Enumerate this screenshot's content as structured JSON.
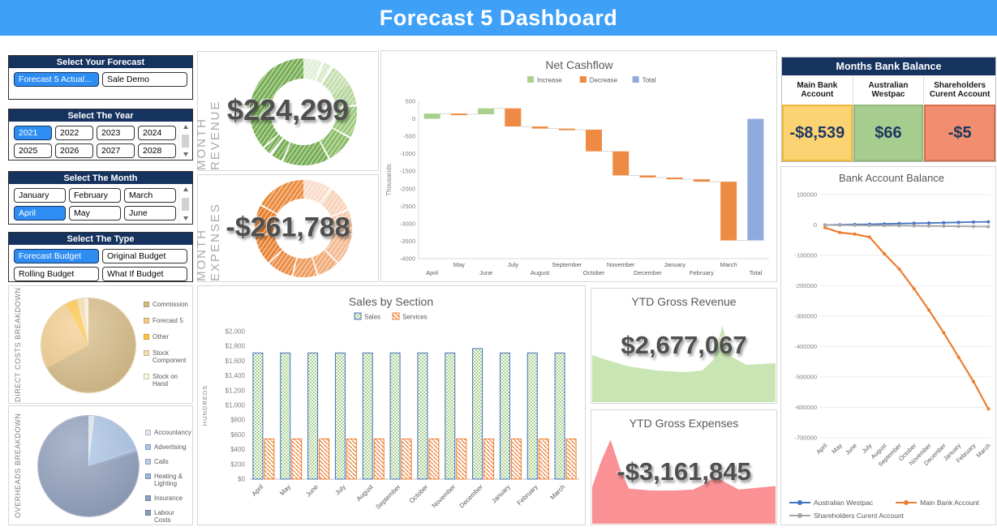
{
  "app": {
    "title": "Forecast 5 Dashboard"
  },
  "slicers": [
    {
      "id": "forecast",
      "title": "Select Your Forecast",
      "scrollbar": false,
      "options": [
        {
          "label": "Forecast 5 Actual...",
          "selected": true
        },
        {
          "label": "Sale Demo",
          "selected": false
        }
      ]
    },
    {
      "id": "year",
      "title": "Select The Year",
      "scrollbar": true,
      "options": [
        {
          "label": "2021",
          "selected": true
        },
        {
          "label": "2022",
          "selected": false
        },
        {
          "label": "2023",
          "selected": false
        },
        {
          "label": "2024",
          "selected": false
        },
        {
          "label": "2025",
          "selected": false
        },
        {
          "label": "2026",
          "selected": false
        },
        {
          "label": "2027",
          "selected": false
        },
        {
          "label": "2028",
          "selected": false
        }
      ]
    },
    {
      "id": "month",
      "title": "Select The Month",
      "scrollbar": true,
      "options": [
        {
          "label": "January",
          "selected": false
        },
        {
          "label": "February",
          "selected": false
        },
        {
          "label": "March",
          "selected": false
        },
        {
          "label": "April",
          "selected": true
        },
        {
          "label": "May",
          "selected": false
        },
        {
          "label": "June",
          "selected": false
        }
      ]
    },
    {
      "id": "type",
      "title": "Select The Type",
      "scrollbar": false,
      "options": [
        {
          "label": "Forecast Budget",
          "selected": true
        },
        {
          "label": "Original Budget",
          "selected": false
        },
        {
          "label": "Rolling Budget",
          "selected": false
        },
        {
          "label": "What If Budget",
          "selected": false
        }
      ]
    }
  ],
  "kpis": {
    "month_revenue": {
      "label": "MONTH REVENUE",
      "value": "$224,299"
    },
    "month_expenses": {
      "label": "MONTH EXPENSES",
      "value": "-$261,788"
    },
    "ytd_revenue": {
      "title": "YTD Gross Revenue",
      "value": "$2,677,067"
    },
    "ytd_expenses": {
      "title": "YTD Gross Expenses",
      "value": "-$3,161,845"
    }
  },
  "bank_table": {
    "title": "Months Bank Balance",
    "accounts": [
      {
        "name": "Main Bank Account",
        "value": "-$8,539",
        "bg": "#fbd372",
        "border": "#f0b73c"
      },
      {
        "name": "Australian Westpac",
        "value": "$66",
        "bg": "#a6cd8d",
        "border": "#93b87d"
      },
      {
        "name": "Shareholders Curent Account",
        "value": "-$5",
        "bg": "#f18e70",
        "border": "#d4704f"
      }
    ]
  },
  "chart_data": [
    {
      "id": "net_cashflow",
      "type": "waterfall",
      "title": "Net Cashflow",
      "legend": [
        {
          "label": "Increase",
          "color": "#a9d08e"
        },
        {
          "label": "Decrease",
          "color": "#ed8b45"
        },
        {
          "label": "Total",
          "color": "#8faadc"
        }
      ],
      "categories": [
        "April",
        "May",
        "June",
        "July",
        "August",
        "September",
        "October",
        "November",
        "December",
        "January",
        "February",
        "March",
        "Total"
      ],
      "changes_thousands": [
        150,
        -20,
        170,
        -520,
        -60,
        -30,
        -620,
        -690,
        -60,
        -50,
        -70,
        -1680
      ],
      "total_thousands": -3480,
      "ylabel": "Thousands",
      "ylim": [
        -4000,
        500
      ],
      "ytick_step": 500
    },
    {
      "id": "sales_by_section",
      "type": "bar",
      "title": "Sales by Section",
      "categories": [
        "April",
        "May",
        "June",
        "July",
        "August",
        "September",
        "October",
        "November",
        "December",
        "January",
        "February",
        "March"
      ],
      "series": [
        {
          "name": "Sales",
          "fill": "#a9d08e",
          "border": "#4472c4",
          "values": [
            1710,
            1710,
            1710,
            1710,
            1710,
            1710,
            1710,
            1710,
            1770,
            1710,
            1710,
            1710
          ]
        },
        {
          "name": "Services",
          "fill": "#ed7d31",
          "border": "#ed7d31",
          "values": [
            545,
            545,
            545,
            545,
            545,
            545,
            545,
            545,
            545,
            545,
            545,
            545
          ]
        }
      ],
      "ylabel": "HUNDREDS",
      "ylim": [
        0,
        2000
      ],
      "ytick_step": 200
    },
    {
      "id": "bank_account_balance",
      "type": "line",
      "title": "Bank Account Balance",
      "categories": [
        "April",
        "May",
        "June",
        "July",
        "August",
        "September",
        "October",
        "November",
        "December",
        "January",
        "February",
        "March"
      ],
      "series": [
        {
          "name": "Australian Westpac",
          "color": "#4472c4",
          "values": [
            66,
            800,
            1500,
            2500,
            3500,
            4500,
            5500,
            6500,
            7500,
            8500,
            9500,
            10500
          ]
        },
        {
          "name": "Main Bank Account",
          "color": "#ed7d31",
          "values": [
            -8539,
            -25000,
            -30000,
            -40000,
            -95000,
            -145000,
            -210000,
            -280000,
            -355000,
            -435000,
            -515000,
            -605000
          ]
        },
        {
          "name": "Shareholders Curent Account",
          "color": "#a5a5a5",
          "values": [
            -5,
            -500,
            -1000,
            -1500,
            -2000,
            -2500,
            -3000,
            -3500,
            -4000,
            -4500,
            -5000,
            -5500
          ]
        }
      ],
      "ylim": [
        -700000,
        100000
      ],
      "ytick_step": 100000,
      "legend_position": "bottom"
    },
    {
      "id": "direct_costs_breakdown",
      "type": "pie",
      "title": "DIRECT COSTS BREAKDOWN",
      "slices": [
        {
          "label": "Commission",
          "value": 67,
          "color": "#d8bc86"
        },
        {
          "label": "Forecast 5",
          "value": 25,
          "color": "#f3cd8d"
        },
        {
          "label": "Other",
          "value": 4,
          "color": "#ffc642"
        },
        {
          "label": "Stock Component",
          "value": 2.5,
          "color": "#f6dfae"
        },
        {
          "label": "Stock on Hand",
          "value": 1.5,
          "color": "#fdf4e0"
        }
      ]
    },
    {
      "id": "overheads_breakdown",
      "type": "pie",
      "title": "OVERHEADS BREAKDOWN",
      "slices": [
        {
          "label": "Accountancy",
          "value": 2,
          "color": "#dde7f3"
        },
        {
          "label": "Advertising",
          "value": 17,
          "color": "#aac4e6"
        },
        {
          "label": "Calls",
          "value": 0.8,
          "color": "#b9cce9"
        },
        {
          "label": "Heating & Lighting",
          "value": 0.7,
          "color": "#9db5d9"
        },
        {
          "label": "Insurance",
          "value": 0.5,
          "color": "#8ba3c9"
        },
        {
          "label": "Labour Costs",
          "value": 79,
          "color": "#8d9dbb"
        }
      ]
    },
    {
      "id": "month_revenue_donut",
      "type": "donut",
      "value": "$224,299",
      "segments": [
        [
          20,
          "#e3f0d9"
        ],
        [
          3,
          "#ffffff"
        ],
        [
          8,
          "#d8eac8"
        ],
        [
          3,
          "#ffffff"
        ],
        [
          26,
          "#c6dfb0"
        ],
        [
          22,
          "#b4d69b"
        ],
        [
          2,
          "#ffffff"
        ],
        [
          34,
          "#9cc87c"
        ],
        [
          2,
          "#ffffff"
        ],
        [
          30,
          "#8abc67"
        ],
        [
          2,
          "#ffffff"
        ],
        [
          50,
          "#76ad52"
        ],
        [
          2,
          "#ffffff"
        ],
        [
          12,
          "#76ad52"
        ],
        [
          3,
          "#ffffff"
        ],
        [
          8,
          "#76ad52"
        ],
        [
          2,
          "#ffffff"
        ],
        [
          131,
          "#76ad52"
        ]
      ]
    },
    {
      "id": "month_expenses_donut",
      "type": "donut",
      "value": "-$261,788",
      "segments": [
        [
          34,
          "#fadcc9"
        ],
        [
          2,
          "#ffffff"
        ],
        [
          30,
          "#f8d2ba"
        ],
        [
          2,
          "#ffffff"
        ],
        [
          28,
          "#f6c7a6"
        ],
        [
          2,
          "#ffffff"
        ],
        [
          36,
          "#f3bb92"
        ],
        [
          2,
          "#ffffff"
        ],
        [
          26,
          "#f1ab77"
        ],
        [
          2,
          "#ffffff"
        ],
        [
          28,
          "#ee9c5d"
        ],
        [
          2,
          "#ffffff"
        ],
        [
          30,
          "#ec8d46"
        ],
        [
          2,
          "#ffffff"
        ],
        [
          34,
          "#e98232"
        ],
        [
          2,
          "#ffffff"
        ],
        [
          36,
          "#e87b25"
        ],
        [
          2,
          "#ffffff"
        ],
        [
          60,
          "#ea8a3c"
        ]
      ]
    },
    {
      "id": "ytd_gross_revenue_area",
      "type": "area",
      "color": "#c9e5b4",
      "points": [
        [
          0,
          42
        ],
        [
          8,
          48
        ],
        [
          20,
          56
        ],
        [
          35,
          61
        ],
        [
          50,
          63
        ],
        [
          60,
          61
        ],
        [
          66,
          48
        ],
        [
          71,
          6
        ],
        [
          76,
          44
        ],
        [
          84,
          54
        ],
        [
          100,
          52
        ]
      ]
    },
    {
      "id": "ytd_gross_expenses_area",
      "type": "area",
      "color": "#f99195",
      "points": [
        [
          0,
          58
        ],
        [
          5,
          28
        ],
        [
          10,
          4
        ],
        [
          15,
          36
        ],
        [
          20,
          60
        ],
        [
          32,
          62
        ],
        [
          45,
          62
        ],
        [
          55,
          61
        ],
        [
          62,
          54
        ],
        [
          67,
          46
        ],
        [
          72,
          52
        ],
        [
          80,
          61
        ],
        [
          100,
          57
        ]
      ]
    }
  ]
}
